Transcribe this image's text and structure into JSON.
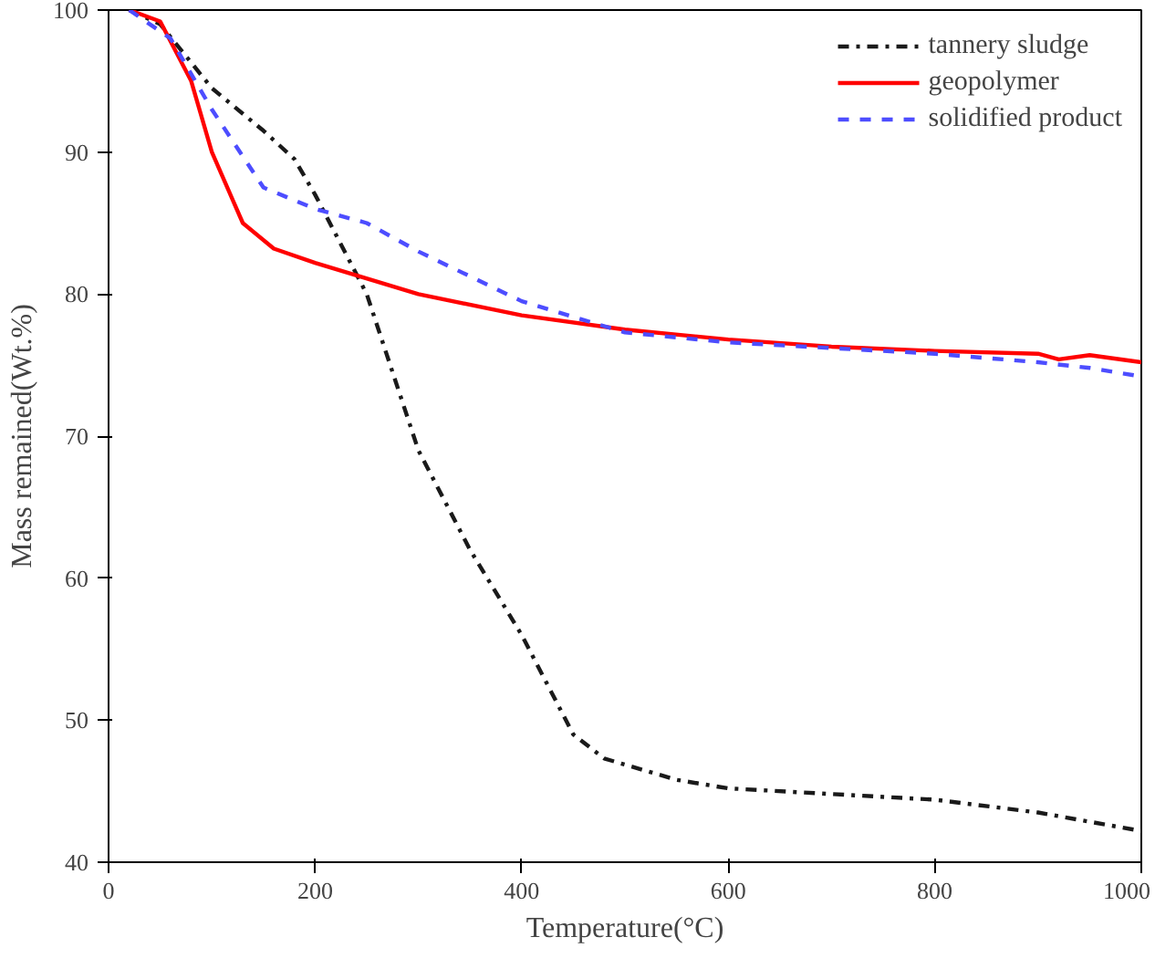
{
  "chart_data": {
    "type": "line",
    "xlabel": "Temperature(°C)",
    "ylabel": "Mass remained(Wt.%)",
    "xlim": [
      0,
      1000
    ],
    "ylim": [
      40,
      100
    ],
    "xticks": [
      0,
      200,
      400,
      600,
      800,
      1000
    ],
    "yticks": [
      40,
      50,
      60,
      70,
      80,
      90,
      100
    ],
    "grid": false,
    "legend": "top right",
    "marker": "none",
    "series": [
      {
        "name": "tannery sludge",
        "color": "#1a1a1a",
        "line_style": "dashdot",
        "x": [
          20,
          50,
          100,
          150,
          180,
          200,
          250,
          300,
          350,
          400,
          450,
          480,
          550,
          600,
          700,
          800,
          900,
          1000
        ],
        "values": [
          100,
          99,
          94.5,
          91.5,
          89.5,
          87,
          80,
          69,
          62,
          56,
          49,
          47.3,
          45.8,
          45.2,
          44.8,
          44.4,
          43.5,
          42.2
        ]
      },
      {
        "name": "geopolymer",
        "color": "#ff0000",
        "line_style": "solid",
        "x": [
          20,
          50,
          80,
          100,
          130,
          160,
          200,
          300,
          400,
          500,
          600,
          700,
          800,
          900,
          920,
          950,
          1000
        ],
        "values": [
          100,
          99.2,
          95,
          90,
          85,
          83.2,
          82.2,
          80,
          78.5,
          77.5,
          76.8,
          76.3,
          76,
          75.8,
          75.4,
          75.7,
          75.2
        ]
      },
      {
        "name": "solidified product",
        "color": "#4d4dff",
        "line_style": "dashed",
        "x": [
          20,
          60,
          100,
          150,
          200,
          250,
          300,
          400,
          500,
          600,
          700,
          800,
          900,
          950,
          1000
        ],
        "values": [
          100,
          98,
          93,
          87.5,
          86,
          85,
          83,
          79.5,
          77.3,
          76.6,
          76.2,
          75.8,
          75.2,
          74.8,
          74.2
        ]
      }
    ]
  }
}
